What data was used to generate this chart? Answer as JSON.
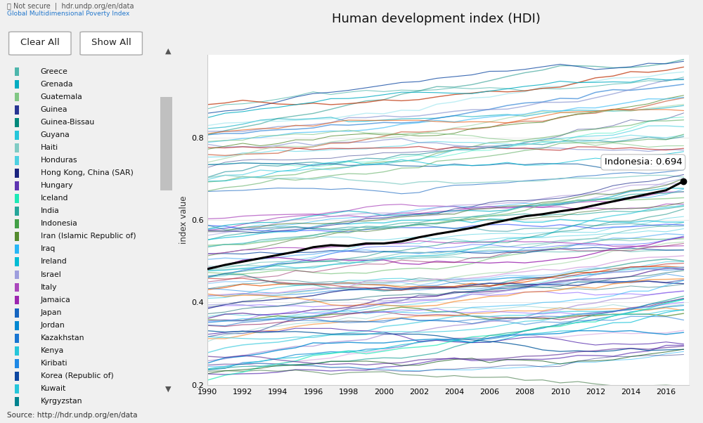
{
  "title": "Human development index (HDI)",
  "ylabel": "index value",
  "source_text": "Source: http://hdr.undp.org/en/data",
  "years": [
    1990,
    1991,
    1992,
    1993,
    1994,
    1995,
    1996,
    1997,
    1998,
    1999,
    2000,
    2001,
    2002,
    2003,
    2004,
    2005,
    2006,
    2007,
    2008,
    2009,
    2010,
    2011,
    2012,
    2013,
    2014,
    2015,
    2016,
    2017
  ],
  "ylim": [
    0.2,
    1.0
  ],
  "xlim": [
    1990,
    2017
  ],
  "indonesia_data": [
    0.481,
    0.491,
    0.499,
    0.507,
    0.515,
    0.523,
    0.534,
    0.539,
    0.537,
    0.543,
    0.543,
    0.548,
    0.558,
    0.566,
    0.573,
    0.581,
    0.591,
    0.6,
    0.609,
    0.614,
    0.621,
    0.627,
    0.636,
    0.645,
    0.654,
    0.663,
    0.672,
    0.694
  ],
  "indonesia_label": "Indonesia: 0.694",
  "bg_color": "#f0f0f0",
  "plot_bg": "#ffffff",
  "indonesia_color": "#000000",
  "legend_countries": [
    "Greece",
    "Grenada",
    "Guatemala",
    "Guinea",
    "Guinea-Bissau",
    "Guyana",
    "Haiti",
    "Honduras",
    "Hong Kong, China (SAR)",
    "Hungary",
    "Iceland",
    "India",
    "Indonesia",
    "Iran (Islamic Republic of)",
    "Iraq",
    "Ireland",
    "Israel",
    "Italy",
    "Jamaica",
    "Japan",
    "Jordan",
    "Kazakhstan",
    "Kenya",
    "Kiribati",
    "Korea (Republic of)",
    "Kuwait",
    "Kyrgyzstan"
  ],
  "legend_colors": [
    "#4db6ac",
    "#00acc1",
    "#81c784",
    "#283593",
    "#00897b",
    "#26c6da",
    "#80cbc4",
    "#4dd0e1",
    "#1a237e",
    "#5e35b1",
    "#1de9b6",
    "#26a69a",
    "#43a047",
    "#558b2f",
    "#29b6f6",
    "#00bcd4",
    "#9e9edd",
    "#ab47bc",
    "#9c27b0",
    "#1565c0",
    "#0288d1",
    "#1976d2",
    "#26c6da",
    "#1e88e5",
    "#0d47a1",
    "#26c6da",
    "#00838f"
  ],
  "line_seed": 42,
  "n_synthetic": 100,
  "colors_pool": [
    "#4db6ac",
    "#00acc1",
    "#81c784",
    "#283593",
    "#00897b",
    "#26c6da",
    "#80cbc4",
    "#4dd0e1",
    "#1a237e",
    "#5e35b1",
    "#1de9b6",
    "#26a69a",
    "#43a047",
    "#558b2f",
    "#29b6f6",
    "#00bcd4",
    "#9e9edd",
    "#ab47bc",
    "#9c27b0",
    "#1565c0",
    "#0288d1",
    "#1976d2",
    "#26c6da",
    "#1e88e5",
    "#0d47a1",
    "#00838f",
    "#80deea",
    "#4fc3f7",
    "#b39ddb",
    "#7986cb",
    "#64b5f6",
    "#4dd0e1",
    "#80cbc4",
    "#a5d6a7",
    "#ce93d8",
    "#7c4dff",
    "#304ffe",
    "#01579b",
    "#006064",
    "#1b5e20",
    "#33691e",
    "#4a148c",
    "#880e4f",
    "#b71c1c",
    "#bf360c",
    "#e65100",
    "#f57f17"
  ],
  "xticks": [
    1990,
    1992,
    1994,
    1996,
    1998,
    2000,
    2002,
    2004,
    2006,
    2008,
    2010,
    2012,
    2014,
    2016
  ],
  "yticks": [
    0.2,
    0.4,
    0.6,
    0.8
  ]
}
